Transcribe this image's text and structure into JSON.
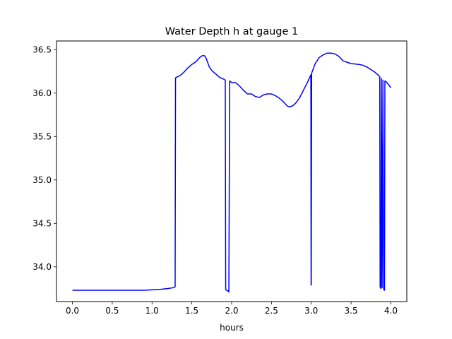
{
  "chart_data": {
    "type": "line",
    "title": "Water Depth h at gauge 1",
    "xlabel": "hours",
    "ylabel": "",
    "xlim": [
      -0.2,
      4.2
    ],
    "ylim": [
      33.6,
      36.6
    ],
    "xticks": [
      0.0,
      0.5,
      1.0,
      1.5,
      2.0,
      2.5,
      3.0,
      3.5,
      4.0
    ],
    "xtick_labels": [
      "0.0",
      "0.5",
      "1.0",
      "1.5",
      "2.0",
      "2.5",
      "3.0",
      "3.5",
      "4.0"
    ],
    "yticks": [
      34.0,
      34.5,
      35.0,
      35.5,
      36.0,
      36.5
    ],
    "ytick_labels": [
      "34.0",
      "34.5",
      "35.0",
      "35.5",
      "36.0",
      "36.5"
    ],
    "grid": false,
    "legend": "none",
    "series": [
      {
        "color": "#0000ff",
        "x": [
          0.0,
          0.5,
          0.9,
          1.1,
          1.2,
          1.27,
          1.29,
          1.295,
          1.3,
          1.35,
          1.4,
          1.45,
          1.5,
          1.55,
          1.6,
          1.63,
          1.66,
          1.68,
          1.7,
          1.72,
          1.75,
          1.8,
          1.85,
          1.9,
          1.92,
          1.925,
          1.935,
          1.96,
          1.965,
          1.975,
          2.0,
          2.05,
          2.1,
          2.15,
          2.2,
          2.25,
          2.3,
          2.35,
          2.4,
          2.45,
          2.5,
          2.55,
          2.6,
          2.65,
          2.7,
          2.73,
          2.76,
          2.8,
          2.85,
          2.9,
          2.95,
          2.995,
          2.998,
          3.0,
          3.005,
          3.05,
          3.1,
          3.15,
          3.2,
          3.25,
          3.3,
          3.35,
          3.4,
          3.5,
          3.6,
          3.65,
          3.7,
          3.75,
          3.8,
          3.85,
          3.86,
          3.865,
          3.875,
          3.88,
          3.89,
          3.9,
          3.91,
          3.92,
          3.925,
          3.94,
          3.97,
          4.0
        ],
        "y": [
          33.73,
          33.73,
          33.73,
          33.74,
          33.75,
          33.76,
          33.77,
          36.17,
          36.18,
          36.2,
          36.24,
          36.29,
          36.33,
          36.36,
          36.41,
          36.43,
          36.43,
          36.4,
          36.35,
          36.3,
          36.26,
          36.22,
          36.18,
          36.16,
          36.15,
          33.74,
          33.73,
          33.72,
          33.71,
          36.14,
          36.12,
          36.12,
          36.08,
          36.03,
          35.99,
          35.99,
          35.96,
          35.95,
          35.98,
          35.99,
          35.99,
          35.97,
          35.94,
          35.9,
          35.85,
          35.84,
          35.85,
          35.88,
          35.94,
          36.03,
          36.12,
          36.21,
          33.79,
          33.79,
          36.23,
          36.34,
          36.41,
          36.44,
          36.46,
          36.46,
          36.45,
          36.42,
          36.37,
          36.34,
          36.33,
          36.32,
          36.3,
          36.27,
          36.24,
          36.2,
          36.19,
          33.77,
          33.75,
          36.17,
          33.76,
          36.15,
          33.74,
          33.73,
          36.14,
          36.13,
          36.1,
          36.06
        ]
      }
    ]
  }
}
